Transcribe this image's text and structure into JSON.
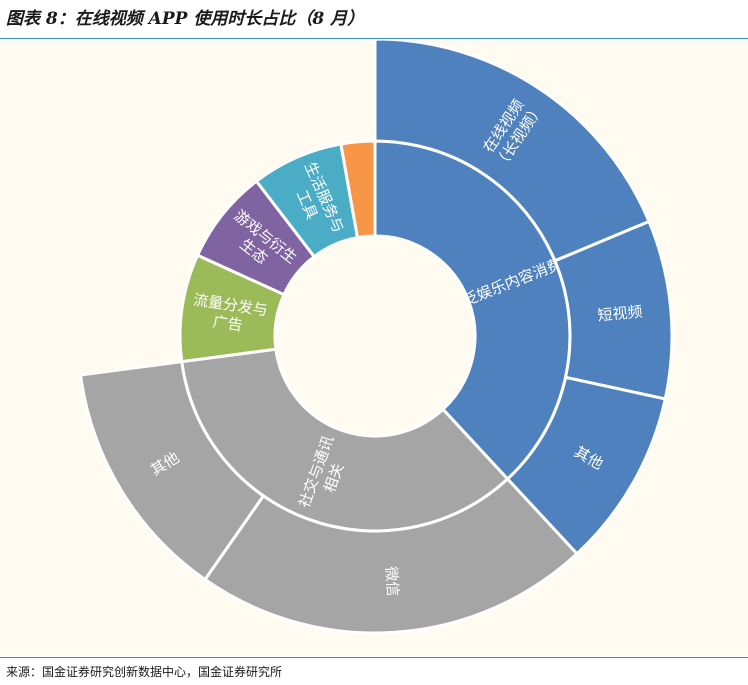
{
  "figure": {
    "title": "图表 8：在线视频 APP 使用时长占比（8 月）",
    "source": "来源：国金证券研究创新数据中心，国金证券研究所"
  },
  "colors": {
    "entertainment": "#4e81bd",
    "social": "#a5a5a5",
    "traffic": "#9bbb59",
    "gaming": "#8064a2",
    "life": "#4bacc6",
    "other": "#f79646",
    "background": "#fffbf0",
    "rule": "#3f8ec9"
  },
  "chart_data": {
    "type": "sunburst",
    "title": "图表 8：在线视频 APP 使用时长占比（8 月）",
    "unit": "share of usage time",
    "inner_ring": [
      {
        "name": "泛娱乐内容消费",
        "value": 0.381,
        "color": "#4e81bd",
        "children": [
          {
            "name": "在线视频（长视频）",
            "value": 0.187,
            "display_lines": [
              "在线视频",
              "（长视频）"
            ]
          },
          {
            "name": "短视频",
            "value": 0.097,
            "display_lines": [
              "短视频"
            ]
          },
          {
            "name": "其他",
            "value": 0.097,
            "display_lines": [
              "其他"
            ]
          }
        ],
        "display_lines": [
          "泛娱乐内容消费"
        ]
      },
      {
        "name": "社交与通讯相关",
        "value": 0.348,
        "color": "#a5a5a5",
        "children": [
          {
            "name": "微信",
            "value": 0.216,
            "display_lines": [
              "微信"
            ]
          },
          {
            "name": "其他",
            "value": 0.132,
            "display_lines": [
              "其他"
            ]
          }
        ],
        "display_lines": [
          "社交与通讯",
          "相关"
        ]
      },
      {
        "name": "流量分发与广告",
        "value": 0.089,
        "color": "#9bbb59",
        "children": [],
        "display_lines": [
          "流量分发与",
          "广告"
        ]
      },
      {
        "name": "游戏与衍生生态",
        "value": 0.078,
        "color": "#8064a2",
        "children": [],
        "display_lines": [
          "游戏与衍生",
          "生态"
        ]
      },
      {
        "name": "生活服务与工具",
        "value": 0.076,
        "color": "#4bacc6",
        "children": [],
        "display_lines": [
          "生活服务与",
          "工具"
        ]
      },
      {
        "name": "",
        "value": 0.028,
        "color": "#f79646",
        "children": [],
        "display_lines": []
      }
    ]
  }
}
